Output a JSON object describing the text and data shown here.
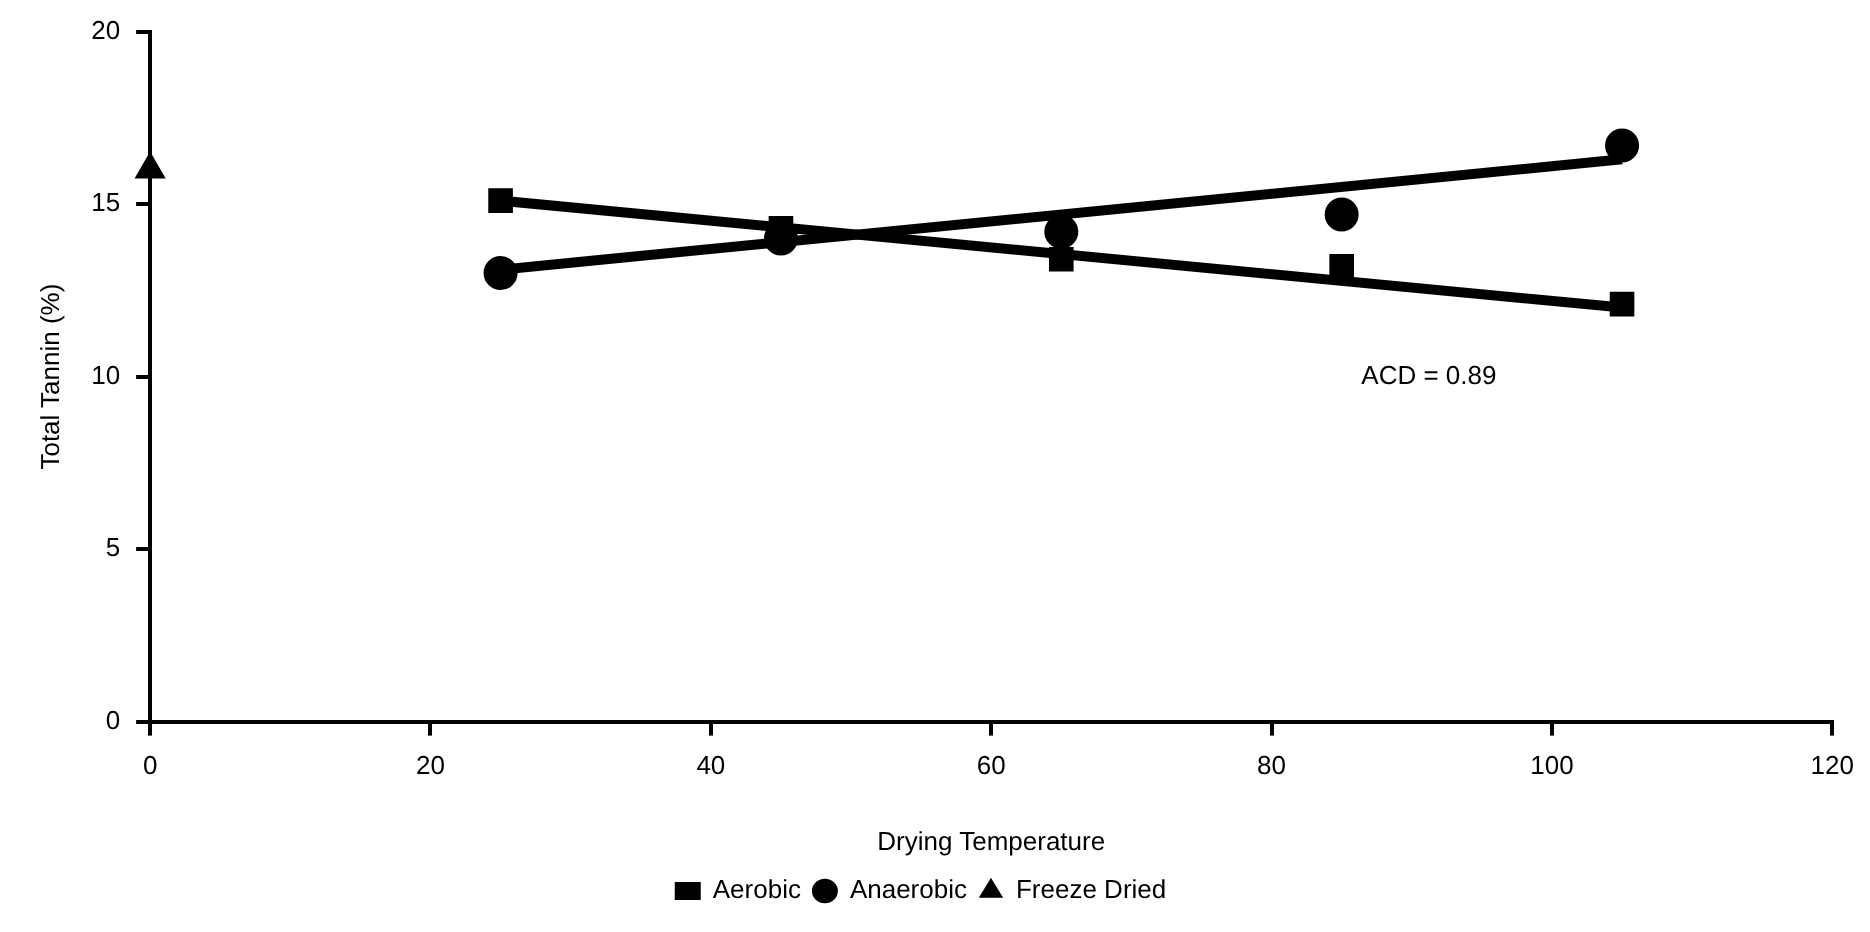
{
  "chart_data": {
    "type": "scatter",
    "xlabel": "Drying Temperature",
    "ylabel": "Total Tannin (%)",
    "xlim": [
      0,
      120
    ],
    "xticks": [
      0,
      20,
      40,
      60,
      80,
      100,
      120
    ],
    "ylim": [
      0,
      20
    ],
    "yticks": [
      0,
      5,
      10,
      15,
      20
    ],
    "grid": false,
    "legend": "bottom",
    "series": [
      {
        "name": "Aerobic",
        "marker": "square",
        "color": "#000000",
        "x": [
          25,
          45,
          65,
          85,
          105
        ],
        "values": [
          15.1,
          14.3,
          13.4,
          13.2,
          12.1
        ]
      },
      {
        "name": "Anaerobic",
        "marker": "circle",
        "color": "#000000",
        "x": [
          25,
          45,
          65,
          85,
          105
        ],
        "values": [
          13.0,
          14.0,
          14.2,
          14.7,
          16.7
        ]
      },
      {
        "name": "Freeze Dried",
        "marker": "triangle",
        "color": "#000000",
        "x": [
          0
        ],
        "values": [
          16.0
        ]
      },
      {
        "type": "line",
        "color": "#000000",
        "x": [
          25,
          105
        ],
        "values": [
          15.1,
          12.0
        ]
      },
      {
        "type": "line",
        "color": "#000000",
        "x": [
          25,
          105
        ],
        "values": [
          13.1,
          16.3
        ]
      }
    ],
    "annotations": [
      "ACD = 0.89"
    ]
  }
}
